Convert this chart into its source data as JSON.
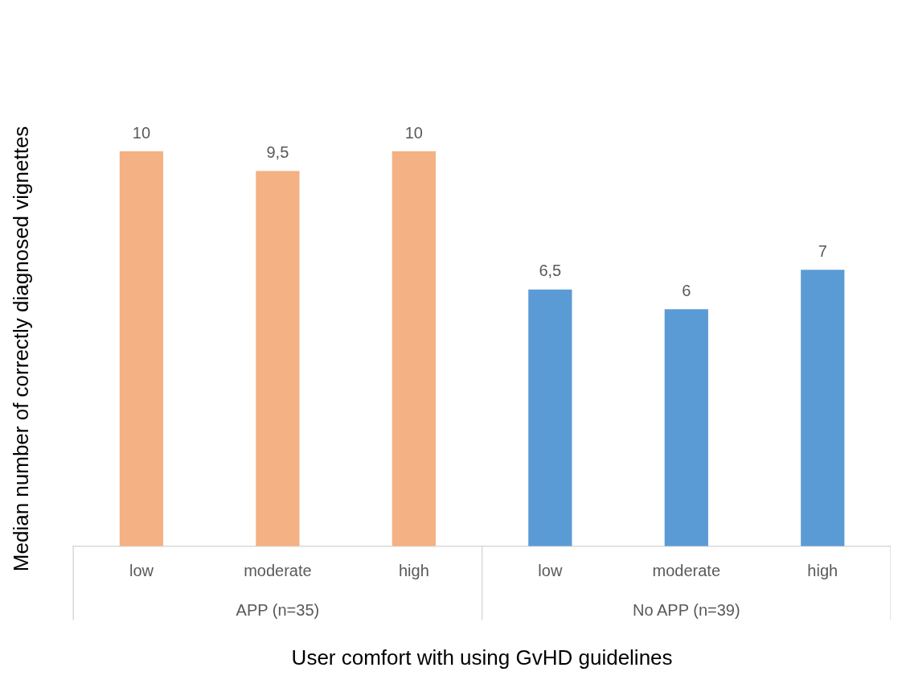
{
  "chart_data": {
    "type": "bar",
    "xlabel": "User comfort with using GvHD guidelines",
    "ylabel": "Median number of correctly diagnosed vignettes",
    "categories": [
      "low",
      "moderate",
      "high",
      "low",
      "moderate",
      "high"
    ],
    "values": [
      10,
      9.5,
      10,
      6.5,
      6,
      7
    ],
    "value_labels": [
      "10",
      "9,5",
      "10",
      "6,5",
      "6",
      "7"
    ],
    "colors": [
      "#f4b183",
      "#f4b183",
      "#f4b183",
      "#5b9bd5",
      "#5b9bd5",
      "#5b9bd5"
    ],
    "tick_labels": "x",
    "grid": false,
    "legend": false,
    "annotations": [
      "APP (n=35)",
      "No APP (n=39)"
    ]
  }
}
